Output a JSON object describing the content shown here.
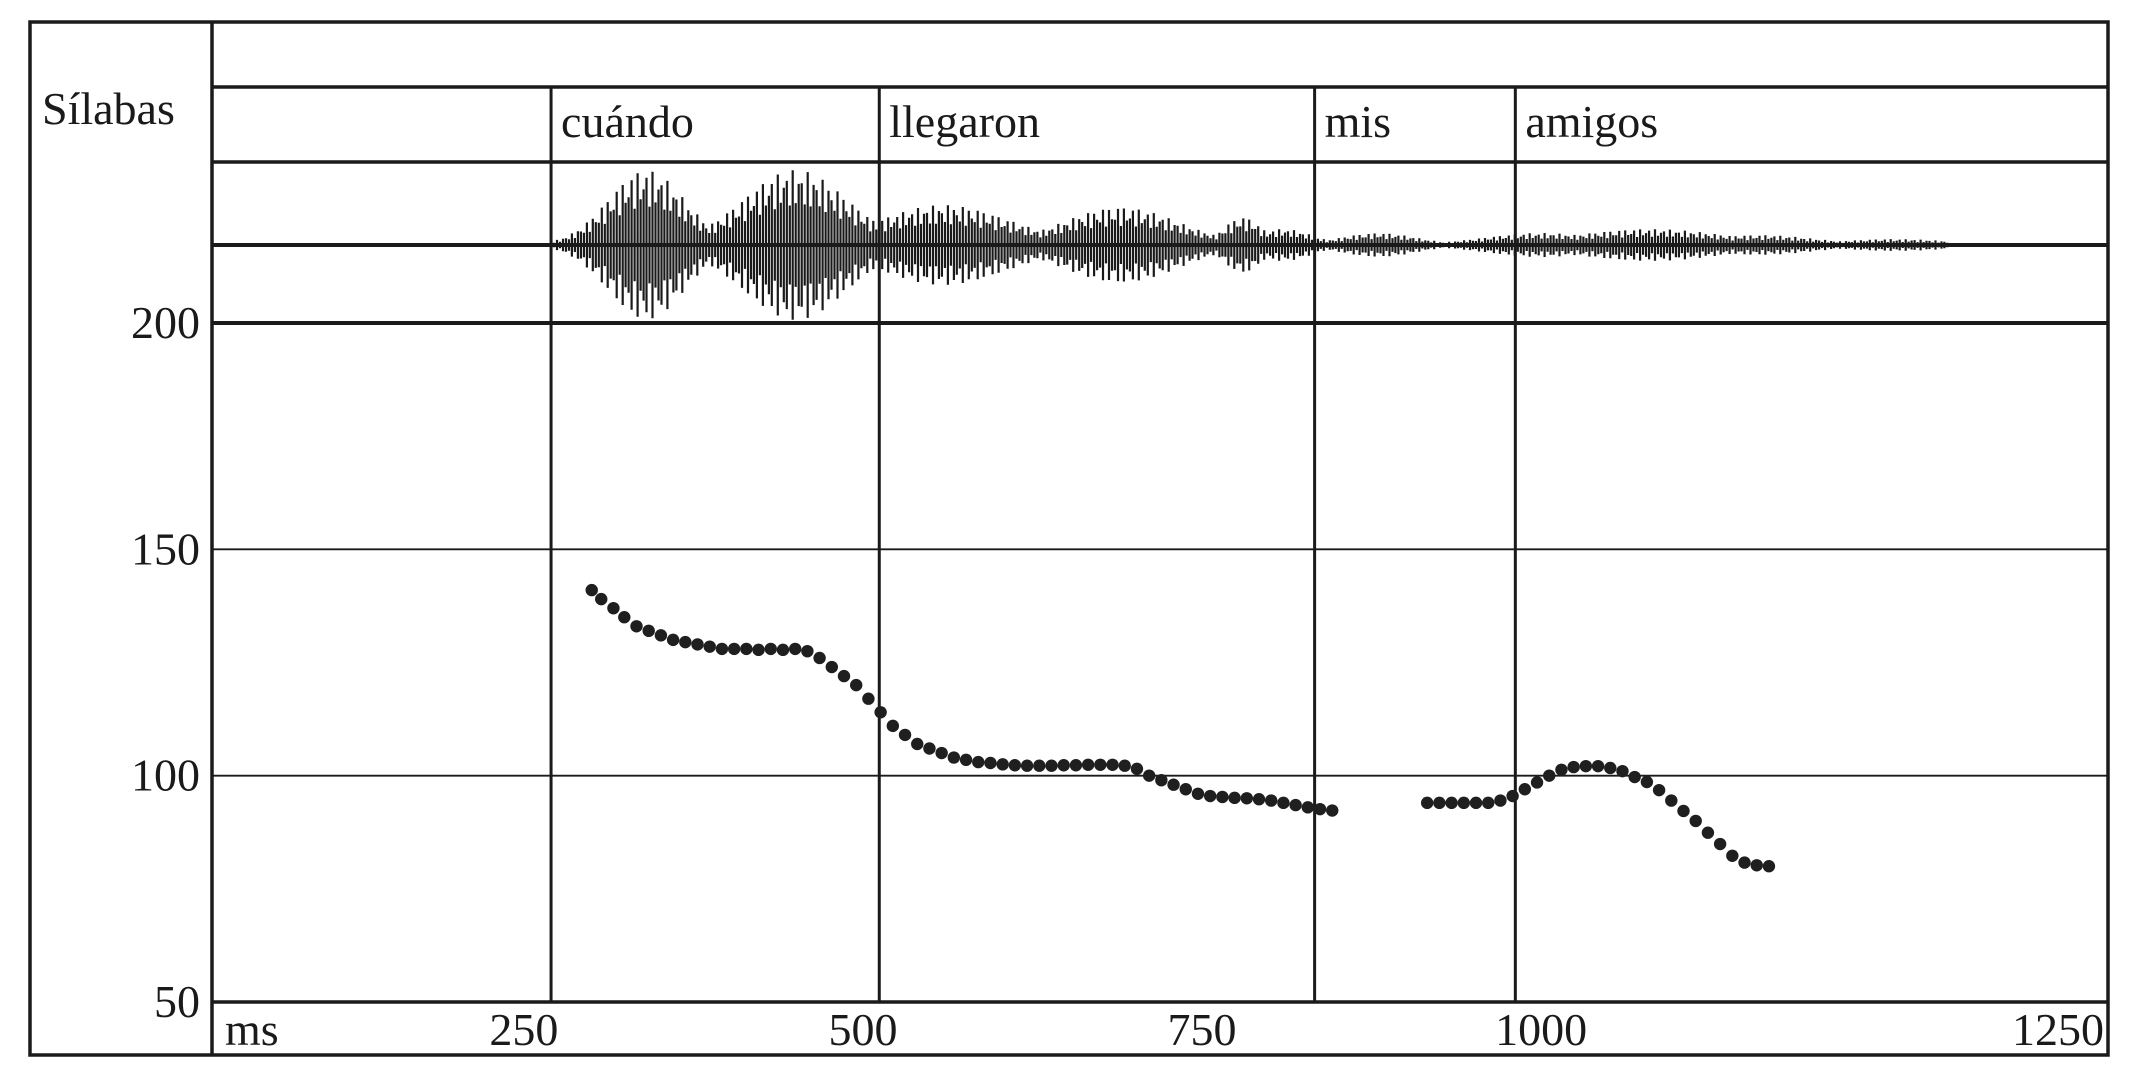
{
  "chart_data": {
    "type": "scatter",
    "title": "",
    "tier_label": "Sílabas",
    "syllables": [
      {
        "text": "cuándo",
        "start": 270,
        "end": 512
      },
      {
        "text": "llegaron",
        "start": 512,
        "end": 833
      },
      {
        "text": "mis",
        "start": 833,
        "end": 981
      },
      {
        "text": "amigos",
        "start": 981,
        "end": 1418
      }
    ],
    "x_unit_label": "ms",
    "x_ticks": [
      250,
      500,
      750,
      1000,
      1250
    ],
    "xlim": [
      20,
      1418
    ],
    "y_ticks": [
      50,
      100,
      150,
      200
    ],
    "ylim": [
      50,
      200
    ],
    "grid": true,
    "point_color": "#1f1f1f",
    "line_color": "#1a1a1a",
    "waveform": true,
    "series": [
      {
        "points": [
          [
            300,
            141
          ],
          [
            307,
            139
          ],
          [
            316,
            137
          ],
          [
            324,
            135
          ],
          [
            333,
            133
          ],
          [
            342,
            132
          ],
          [
            351,
            131
          ],
          [
            360,
            130
          ],
          [
            369,
            129.5
          ],
          [
            378,
            129
          ],
          [
            387,
            128.5
          ],
          [
            396,
            128
          ],
          [
            405,
            128
          ],
          [
            414,
            128
          ],
          [
            423,
            127.8
          ],
          [
            432,
            128
          ],
          [
            441,
            127.8
          ],
          [
            450,
            128
          ],
          [
            459,
            127.5
          ],
          [
            468,
            126
          ],
          [
            477,
            124
          ],
          [
            486,
            122
          ],
          [
            495,
            120
          ],
          [
            504,
            117
          ],
          [
            513,
            114
          ],
          [
            522,
            111
          ],
          [
            531,
            109
          ],
          [
            540,
            107
          ],
          [
            549,
            106
          ],
          [
            558,
            105
          ],
          [
            567,
            104
          ],
          [
            576,
            103.5
          ],
          [
            585,
            103
          ],
          [
            594,
            102.8
          ],
          [
            603,
            102.5
          ],
          [
            612,
            102.3
          ],
          [
            621,
            102.2
          ],
          [
            630,
            102.2
          ],
          [
            639,
            102.2
          ],
          [
            648,
            102.3
          ],
          [
            657,
            102.3
          ],
          [
            666,
            102.4
          ],
          [
            675,
            102.4
          ],
          [
            684,
            102.4
          ],
          [
            693,
            102.2
          ],
          [
            702,
            101.5
          ],
          [
            711,
            100
          ],
          [
            720,
            99
          ],
          [
            729,
            98
          ],
          [
            738,
            97
          ],
          [
            747,
            96
          ],
          [
            756,
            95.5
          ],
          [
            765,
            95.3
          ],
          [
            774,
            95.1
          ],
          [
            783,
            95
          ],
          [
            792,
            94.8
          ],
          [
            801,
            94.5
          ],
          [
            810,
            94
          ],
          [
            819,
            93.5
          ],
          [
            828,
            93
          ],
          [
            837,
            92.6
          ],
          [
            846,
            92.3
          ]
        ]
      },
      {
        "points": [
          [
            916,
            94
          ],
          [
            925,
            94
          ],
          [
            934,
            94
          ],
          [
            943,
            94
          ],
          [
            952,
            94
          ],
          [
            961,
            94
          ],
          [
            970,
            94.5
          ],
          [
            979,
            95.5
          ],
          [
            988,
            97
          ],
          [
            997,
            98.5
          ],
          [
            1006,
            100
          ],
          [
            1015,
            101.3
          ],
          [
            1024,
            101.9
          ],
          [
            1033,
            102.1
          ],
          [
            1042,
            102.1
          ],
          [
            1051,
            101.7
          ],
          [
            1060,
            101
          ],
          [
            1069,
            99.7
          ],
          [
            1078,
            98.6
          ],
          [
            1087,
            96.8
          ],
          [
            1096,
            94.5
          ],
          [
            1105,
            92.2
          ],
          [
            1114,
            90
          ],
          [
            1123,
            87.4
          ],
          [
            1132,
            84.9
          ],
          [
            1141,
            82.3
          ],
          [
            1150,
            80.8
          ],
          [
            1159,
            80.2
          ],
          [
            1168,
            80
          ]
        ]
      }
    ]
  }
}
